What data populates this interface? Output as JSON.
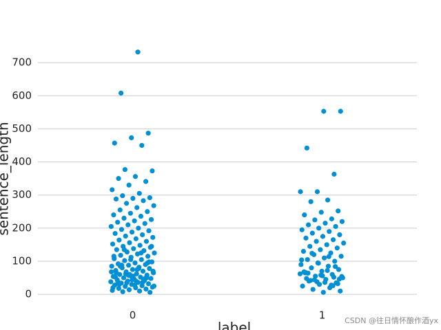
{
  "chart_data": {
    "type": "strip",
    "x_label": "label",
    "y_label": "sentence_length",
    "categories": [
      "0",
      "1"
    ],
    "color": "#008fd5",
    "values": [
      [
        732,
        608,
        487,
        473,
        457,
        450,
        377,
        373,
        356,
        350,
        341,
        330,
        316,
        305,
        298,
        292,
        290,
        288,
        283,
        275,
        268,
        262,
        255,
        250,
        245,
        240,
        236,
        230,
        226,
        222,
        218,
        214,
        210,
        205,
        200,
        196,
        192,
        188,
        184,
        180,
        176,
        172,
        168,
        164,
        160,
        156,
        152,
        148,
        145,
        142,
        138,
        135,
        132,
        128,
        125,
        122,
        118,
        115,
        112,
        108,
        105,
        102,
        98,
        95,
        92,
        90,
        88,
        85,
        82,
        80,
        78,
        75,
        72,
        70,
        68,
        65,
        62,
        60,
        58,
        56,
        54,
        52,
        50,
        48,
        46,
        44,
        42,
        40,
        38,
        36,
        34,
        32,
        30,
        28,
        26,
        24,
        22,
        20,
        18,
        16,
        14,
        12,
        10,
        8,
        6,
        55,
        65,
        45,
        35,
        25,
        75,
        85,
        95,
        105,
        115,
        125,
        135,
        145,
        28,
        38,
        48,
        58,
        68,
        78,
        88,
        98,
        44,
        52,
        36,
        62,
        70,
        40,
        30,
        50,
        60,
        20
      ],
      [
        553,
        553,
        442,
        363,
        310,
        310,
        285,
        280,
        252,
        248,
        240,
        228,
        225,
        220,
        215,
        210,
        205,
        200,
        195,
        190,
        185,
        180,
        175,
        170,
        165,
        160,
        155,
        150,
        145,
        140,
        135,
        130,
        125,
        120,
        115,
        110,
        105,
        100,
        95,
        90,
        85,
        80,
        75,
        70,
        65,
        60,
        55,
        50,
        45,
        40,
        35,
        30,
        25,
        20,
        15,
        10,
        6,
        48,
        52,
        38,
        62,
        72,
        42,
        32,
        58,
        68,
        28,
        44,
        54,
        36,
        64,
        84,
        94,
        104,
        114,
        124,
        46,
        56,
        66,
        26
      ]
    ],
    "ylim": [
      -35,
      775
    ],
    "yticks": [
      0,
      100,
      200,
      300,
      400,
      500,
      600,
      700
    ],
    "grid": true,
    "watermark": "CSDN @往日情怀酿作酒yx"
  }
}
